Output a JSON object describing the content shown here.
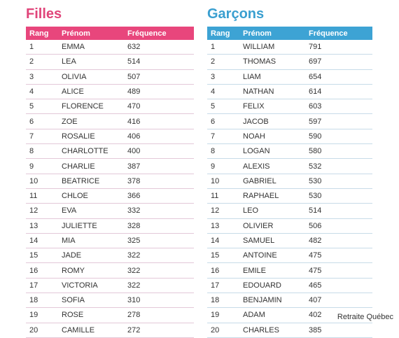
{
  "girls": {
    "title": "Filles",
    "headers": [
      "Rang",
      "Prénom",
      "Fréquence"
    ],
    "rows": [
      [
        "1",
        "EMMA",
        "632"
      ],
      [
        "2",
        "LEA",
        "514"
      ],
      [
        "3",
        "OLIVIA",
        "507"
      ],
      [
        "4",
        "ALICE",
        "489"
      ],
      [
        "5",
        "FLORENCE",
        "470"
      ],
      [
        "6",
        "ZOE",
        "416"
      ],
      [
        "7",
        "ROSALIE",
        "406"
      ],
      [
        "8",
        "CHARLOTTE",
        "400"
      ],
      [
        "9",
        "CHARLIE",
        "387"
      ],
      [
        "10",
        "BEATRICE",
        "378"
      ],
      [
        "11",
        "CHLOE",
        "366"
      ],
      [
        "12",
        "EVA",
        "332"
      ],
      [
        "13",
        "JULIETTE",
        "328"
      ],
      [
        "14",
        "MIA",
        "325"
      ],
      [
        "15",
        "JADE",
        "322"
      ],
      [
        "16",
        "ROMY",
        "322"
      ],
      [
        "17",
        "VICTORIA",
        "322"
      ],
      [
        "18",
        "SOFIA",
        "310"
      ],
      [
        "19",
        "ROSE",
        "278"
      ],
      [
        "20",
        "CAMILLE",
        "272"
      ]
    ]
  },
  "boys": {
    "title": "Garçons",
    "headers": [
      "Rang",
      "Prénom",
      "Fréquence"
    ],
    "rows": [
      [
        "1",
        "WILLIAM",
        "791"
      ],
      [
        "2",
        "THOMAS",
        "697"
      ],
      [
        "3",
        "LIAM",
        "654"
      ],
      [
        "4",
        "NATHAN",
        "614"
      ],
      [
        "5",
        "FELIX",
        "603"
      ],
      [
        "6",
        "JACOB",
        "597"
      ],
      [
        "7",
        "NOAH",
        "590"
      ],
      [
        "8",
        "LOGAN",
        "580"
      ],
      [
        "9",
        "ALEXIS",
        "532"
      ],
      [
        "10",
        "GABRIEL",
        "530"
      ],
      [
        "11",
        "RAPHAEL",
        "530"
      ],
      [
        "12",
        "LEO",
        "514"
      ],
      [
        "13",
        "OLIVIER",
        "506"
      ],
      [
        "14",
        "SAMUEL",
        "482"
      ],
      [
        "15",
        "ANTOINE",
        "475"
      ],
      [
        "16",
        "EMILE",
        "475"
      ],
      [
        "17",
        "EDOUARD",
        "465"
      ],
      [
        "18",
        "BENJAMIN",
        "407"
      ],
      [
        "19",
        "ADAM",
        "402"
      ],
      [
        "20",
        "CHARLES",
        "385"
      ]
    ]
  },
  "credit": "Retraite Québec"
}
